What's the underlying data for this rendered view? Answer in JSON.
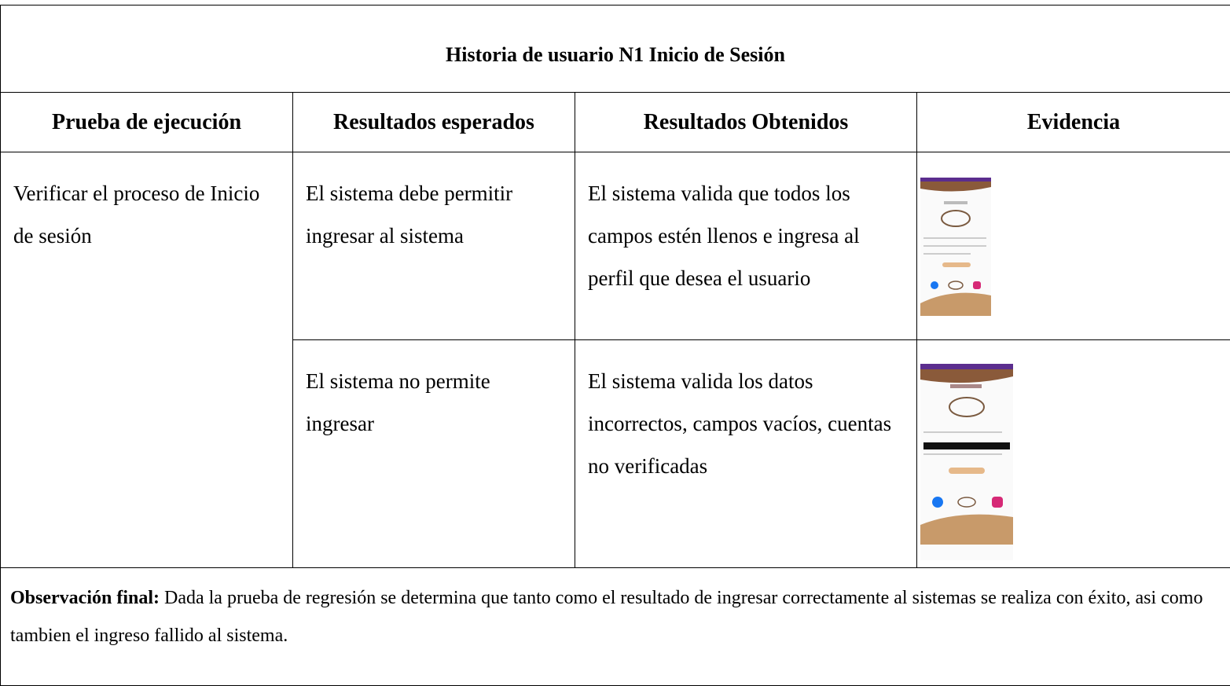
{
  "table": {
    "title": "Historia de usuario N1 Inicio de Sesión",
    "headers": [
      "Prueba de ejecución",
      "Resultados esperados",
      "Resultados Obtenidos",
      "Evidencia"
    ],
    "rows": [
      [
        "Verificar el proceso de Inicio de sesión",
        "El sistema debe permitir ingresar al sistema",
        "El sistema valida que todos los campos estén llenos e ingresa al perfil que desea el usuario"
      ],
      [
        "El sistema no permite ingresar",
        "El sistema valida los datos incorrectos, campos vacíos, cuentas no verificadas"
      ]
    ]
  },
  "observation": {
    "label": "Observación final:",
    "text": "Dada la prueba de regresión se determina que tanto como el resultado de ingresar correctamente al sistemas se realiza con éxito, asi como tambien el ingreso fallido al sistema."
  }
}
